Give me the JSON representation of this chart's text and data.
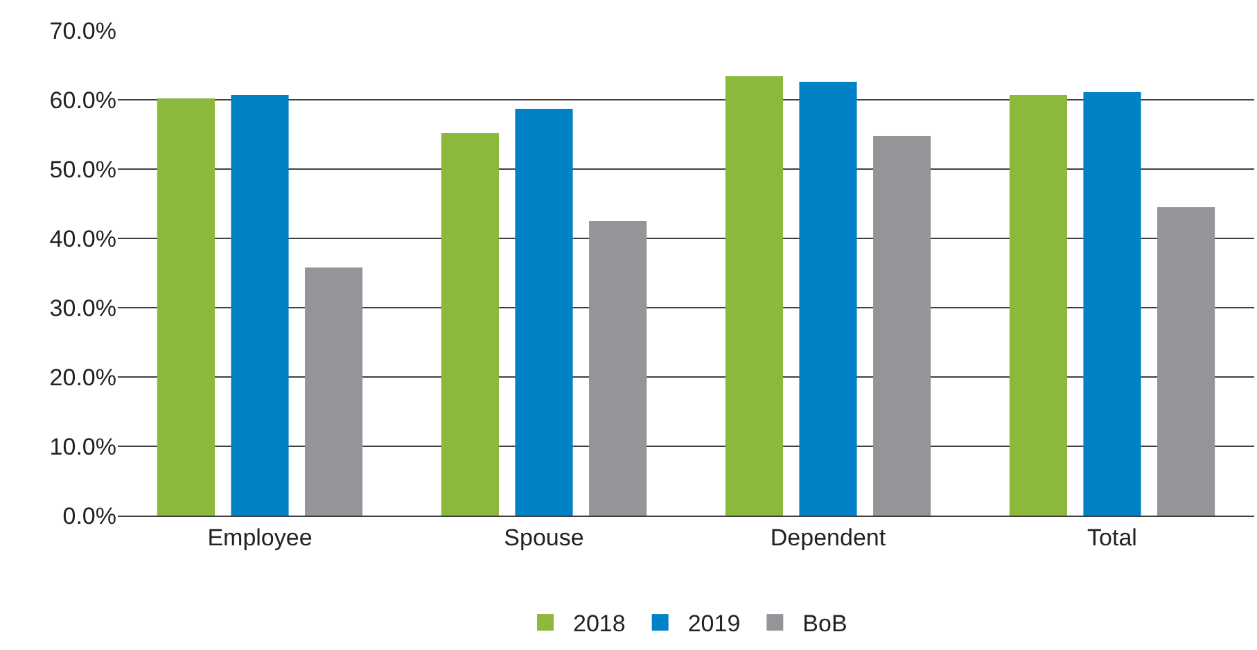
{
  "chart_data": {
    "type": "bar",
    "categories": [
      "Employee",
      "Spouse",
      "Dependent",
      "Total"
    ],
    "series": [
      {
        "name": "2018",
        "color": "#8cb83c",
        "values": [
          60.2,
          55.2,
          63.4,
          60.7
        ]
      },
      {
        "name": "2019",
        "color": "#0082c6",
        "values": [
          60.7,
          58.7,
          62.6,
          61.1
        ]
      },
      {
        "name": "BoB",
        "color": "#939598",
        "values": [
          35.8,
          42.5,
          54.8,
          44.5
        ]
      }
    ],
    "ylim": [
      0,
      70
    ],
    "yticks": [
      {
        "value": 0,
        "label": "0.0%"
      },
      {
        "value": 10,
        "label": "10.0%"
      },
      {
        "value": 20,
        "label": "20.0%"
      },
      {
        "value": 30,
        "label": "30.0%"
      },
      {
        "value": 40,
        "label": "40.0%"
      },
      {
        "value": 50,
        "label": "50.0%"
      },
      {
        "value": 60,
        "label": "60.0%"
      },
      {
        "value": 70,
        "label": "70.0%"
      }
    ],
    "grid": "y",
    "legend": "bottom"
  }
}
